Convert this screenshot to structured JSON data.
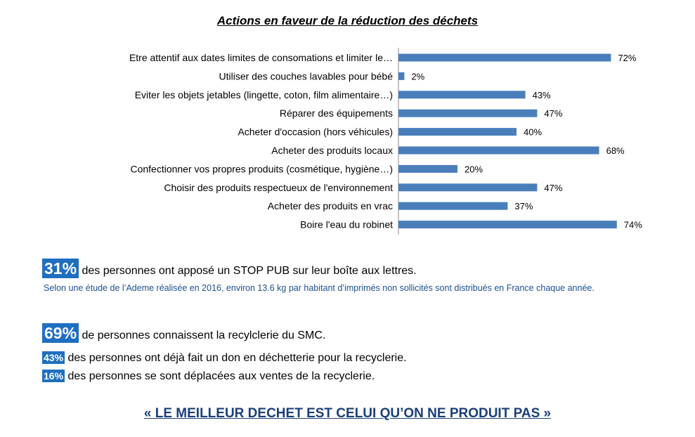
{
  "chart_data": {
    "type": "bar",
    "orientation": "horizontal",
    "title": "Actions en faveur de la réduction des déchets",
    "categories": [
      "Etre attentif aux dates limites de consomations et limiter le…",
      "Utiliser des couches lavables pour bébé",
      "Eviter les objets jetables (lingette, coton, film alimentaire…)",
      "Réparer des équipements",
      "Acheter d'occasion (hors véhicules)",
      "Acheter des produits locaux",
      "Confectionner vos propres produits (cosmétique, hygiène…)",
      "Choisir des produits respectueux de l'environnement",
      "Acheter des produits en vrac",
      "Boire l'eau du robinet"
    ],
    "values": [
      72,
      2,
      43,
      47,
      40,
      68,
      20,
      47,
      37,
      74
    ],
    "value_labels": [
      "72%",
      "2%",
      "43%",
      "47%",
      "40%",
      "68%",
      "20%",
      "47%",
      "37%",
      "74%"
    ],
    "bar_color": "#4a7ebb",
    "xlim": [
      0,
      100
    ],
    "grid": false,
    "legend": "none"
  },
  "stats": {
    "stop_pub": {
      "badge": "31%",
      "text": " des personnes ont apposé un STOP PUB sur leur boîte aux lettres."
    },
    "ademe_note": "Selon une étude de l’Ademe réalisée en 2016, environ 13.6 kg par habitant d’imprimés non sollicités sont distribués en France chaque année.",
    "recyclerie_known": {
      "badge": "69%",
      "text": " de personnes connaissent la recylclerie du SMC."
    },
    "don_dechetterie": {
      "badge": "43%",
      "text": " des personnes ont déjà fait un don en déchetterie pour la recyclerie."
    },
    "ventes": {
      "badge": "16%",
      "text": " des personnes se sont déplacées aux ventes de la recyclerie."
    }
  },
  "slogan": "« LE MEILLEUR DECHET EST CELUI QU’ON NE PRODUIT PAS »",
  "colors": {
    "badge": "#1f6fc0",
    "note": "#1b4f91",
    "slogan": "#1b3f7a"
  }
}
